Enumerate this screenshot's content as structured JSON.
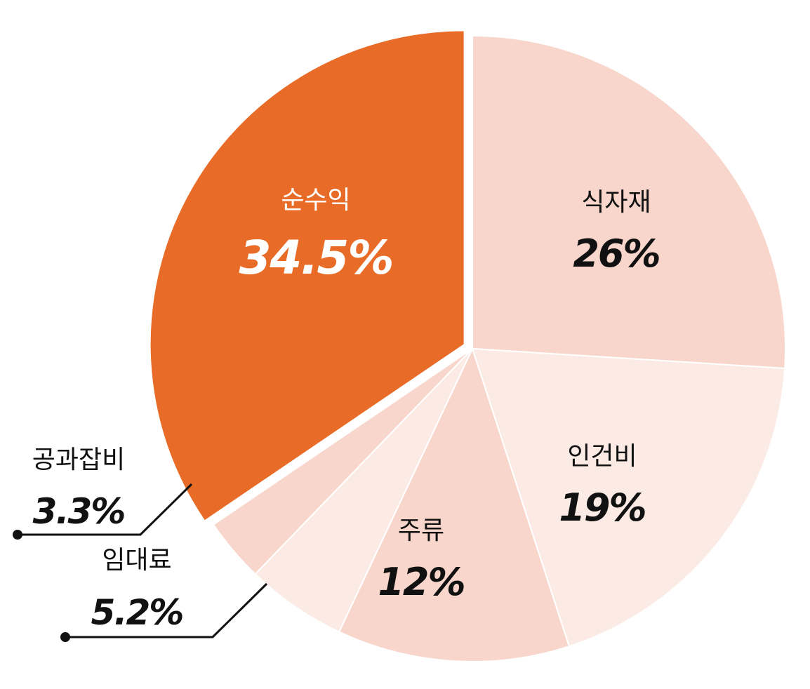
{
  "chart_data": {
    "type": "pie",
    "slices": [
      {
        "label": "식자재",
        "value": 26,
        "value_label": "26%",
        "color": "#f8d6cb",
        "text_color": "#111111"
      },
      {
        "label": "인건비",
        "value": 19,
        "value_label": "19%",
        "color": "#fcebe5",
        "text_color": "#111111"
      },
      {
        "label": "주류",
        "value": 12,
        "value_label": "12%",
        "color": "#f8d6cb",
        "text_color": "#111111"
      },
      {
        "label": "임대료",
        "value": 5.2,
        "value_label": "5.2%",
        "color": "#fcebe5",
        "text_color": "#111111"
      },
      {
        "label": "공과잡비",
        "value": 3.3,
        "value_label": "3.3%",
        "color": "#f8d6cb",
        "text_color": "#111111"
      },
      {
        "label": "순수익",
        "value": 34.5,
        "value_label": "34.5%",
        "color": "#e86c27",
        "text_color": "#ffffff",
        "exploded": true
      }
    ],
    "start_angle": "12 o'clock",
    "direction": "clockwise"
  }
}
